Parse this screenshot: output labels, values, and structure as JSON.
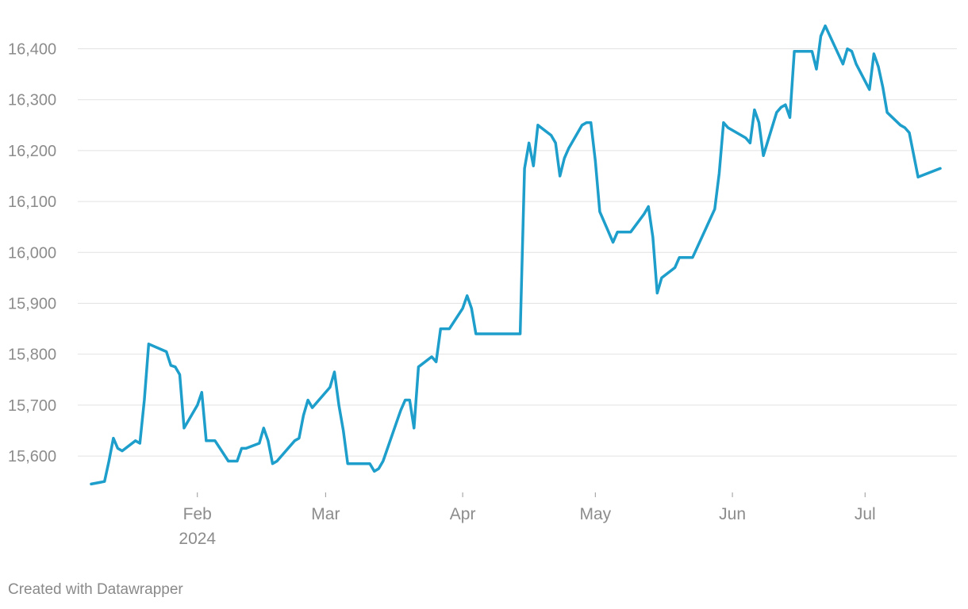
{
  "chart_data": {
    "type": "line",
    "title": "",
    "xlabel": "",
    "ylabel": "",
    "xlim": [
      "2024-01-08",
      "2024-07-18"
    ],
    "ylim": [
      15530,
      16460
    ],
    "y_ticks": [
      15600,
      15700,
      15800,
      15900,
      16000,
      16100,
      16200,
      16300,
      16400
    ],
    "y_tick_labels": [
      "15,600",
      "15,700",
      "15,800",
      "15,900",
      "16,000",
      "16,100",
      "16,200",
      "16,300",
      "16,400"
    ],
    "x_ticks": [
      {
        "date": "2024-02-01",
        "label": "Feb",
        "sublabel": "2024"
      },
      {
        "date": "2024-03-01",
        "label": "Mar",
        "sublabel": ""
      },
      {
        "date": "2024-04-01",
        "label": "Apr",
        "sublabel": ""
      },
      {
        "date": "2024-05-01",
        "label": "May",
        "sublabel": ""
      },
      {
        "date": "2024-06-01",
        "label": "Jun",
        "sublabel": ""
      },
      {
        "date": "2024-07-01",
        "label": "Jul",
        "sublabel": ""
      }
    ],
    "grid": true,
    "color": "#1d9ecb",
    "series": [
      {
        "name": "",
        "points": [
          [
            "2024-01-08",
            15545
          ],
          [
            "2024-01-11",
            15550
          ],
          [
            "2024-01-12",
            15590
          ],
          [
            "2024-01-13",
            15635
          ],
          [
            "2024-01-14",
            15615
          ],
          [
            "2024-01-15",
            15610
          ],
          [
            "2024-01-18",
            15630
          ],
          [
            "2024-01-19",
            15625
          ],
          [
            "2024-01-20",
            15710
          ],
          [
            "2024-01-21",
            15820
          ],
          [
            "2024-01-25",
            15805
          ],
          [
            "2024-01-26",
            15778
          ],
          [
            "2024-01-27",
            15775
          ],
          [
            "2024-01-28",
            15760
          ],
          [
            "2024-01-29",
            15655
          ],
          [
            "2024-02-01",
            15700
          ],
          [
            "2024-02-02",
            15725
          ],
          [
            "2024-02-03",
            15630
          ],
          [
            "2024-02-05",
            15630
          ],
          [
            "2024-02-08",
            15590
          ],
          [
            "2024-02-10",
            15590
          ],
          [
            "2024-02-11",
            15615
          ],
          [
            "2024-02-12",
            15615
          ],
          [
            "2024-02-15",
            15625
          ],
          [
            "2024-02-16",
            15655
          ],
          [
            "2024-02-17",
            15630
          ],
          [
            "2024-02-18",
            15585
          ],
          [
            "2024-02-19",
            15590
          ],
          [
            "2024-02-23",
            15630
          ],
          [
            "2024-02-24",
            15635
          ],
          [
            "2024-02-25",
            15680
          ],
          [
            "2024-02-26",
            15710
          ],
          [
            "2024-02-27",
            15695
          ],
          [
            "2024-03-02",
            15735
          ],
          [
            "2024-03-03",
            15765
          ],
          [
            "2024-03-04",
            15700
          ],
          [
            "2024-03-05",
            15650
          ],
          [
            "2024-03-06",
            15585
          ],
          [
            "2024-03-11",
            15585
          ],
          [
            "2024-03-12",
            15570
          ],
          [
            "2024-03-13",
            15575
          ],
          [
            "2024-03-14",
            15590
          ],
          [
            "2024-03-17",
            15665
          ],
          [
            "2024-03-18",
            15690
          ],
          [
            "2024-03-19",
            15710
          ],
          [
            "2024-03-20",
            15710
          ],
          [
            "2024-03-21",
            15655
          ],
          [
            "2024-03-22",
            15775
          ],
          [
            "2024-03-25",
            15795
          ],
          [
            "2024-03-26",
            15785
          ],
          [
            "2024-03-27",
            15850
          ],
          [
            "2024-03-29",
            15850
          ],
          [
            "2024-04-01",
            15890
          ],
          [
            "2024-04-02",
            15915
          ],
          [
            "2024-04-03",
            15890
          ],
          [
            "2024-04-04",
            15840
          ],
          [
            "2024-04-14",
            15840
          ],
          [
            "2024-04-15",
            16165
          ],
          [
            "2024-04-16",
            16215
          ],
          [
            "2024-04-17",
            16170
          ],
          [
            "2024-04-18",
            16250
          ],
          [
            "2024-04-21",
            16230
          ],
          [
            "2024-04-22",
            16215
          ],
          [
            "2024-04-23",
            16150
          ],
          [
            "2024-04-24",
            16185
          ],
          [
            "2024-04-25",
            16205
          ],
          [
            "2024-04-28",
            16250
          ],
          [
            "2024-04-29",
            16255
          ],
          [
            "2024-04-30",
            16255
          ],
          [
            "2024-05-01",
            16180
          ],
          [
            "2024-05-02",
            16080
          ],
          [
            "2024-05-05",
            16020
          ],
          [
            "2024-05-06",
            16040
          ],
          [
            "2024-05-09",
            16040
          ],
          [
            "2024-05-12",
            16075
          ],
          [
            "2024-05-13",
            16090
          ],
          [
            "2024-05-14",
            16030
          ],
          [
            "2024-05-15",
            15920
          ],
          [
            "2024-05-16",
            15950
          ],
          [
            "2024-05-19",
            15970
          ],
          [
            "2024-05-20",
            15990
          ],
          [
            "2024-05-23",
            15990
          ],
          [
            "2024-05-28",
            16085
          ],
          [
            "2024-05-29",
            16155
          ],
          [
            "2024-05-30",
            16255
          ],
          [
            "2024-05-31",
            16245
          ],
          [
            "2024-06-04",
            16225
          ],
          [
            "2024-06-05",
            16215
          ],
          [
            "2024-06-06",
            16280
          ],
          [
            "2024-06-07",
            16255
          ],
          [
            "2024-06-08",
            16190
          ],
          [
            "2024-06-11",
            16275
          ],
          [
            "2024-06-12",
            16285
          ],
          [
            "2024-06-13",
            16290
          ],
          [
            "2024-06-14",
            16265
          ],
          [
            "2024-06-15",
            16395
          ],
          [
            "2024-06-19",
            16395
          ],
          [
            "2024-06-20",
            16360
          ],
          [
            "2024-06-21",
            16425
          ],
          [
            "2024-06-22",
            16445
          ],
          [
            "2024-06-26",
            16370
          ],
          [
            "2024-06-27",
            16400
          ],
          [
            "2024-06-28",
            16395
          ],
          [
            "2024-06-29",
            16370
          ],
          [
            "2024-07-02",
            16320
          ],
          [
            "2024-07-03",
            16390
          ],
          [
            "2024-07-04",
            16365
          ],
          [
            "2024-07-05",
            16325
          ],
          [
            "2024-07-06",
            16275
          ],
          [
            "2024-07-09",
            16250
          ],
          [
            "2024-07-10",
            16245
          ],
          [
            "2024-07-11",
            16235
          ],
          [
            "2024-07-13",
            16148
          ],
          [
            "2024-07-18",
            16165
          ]
        ]
      }
    ]
  },
  "footer": {
    "credit": "Created with Datawrapper"
  }
}
